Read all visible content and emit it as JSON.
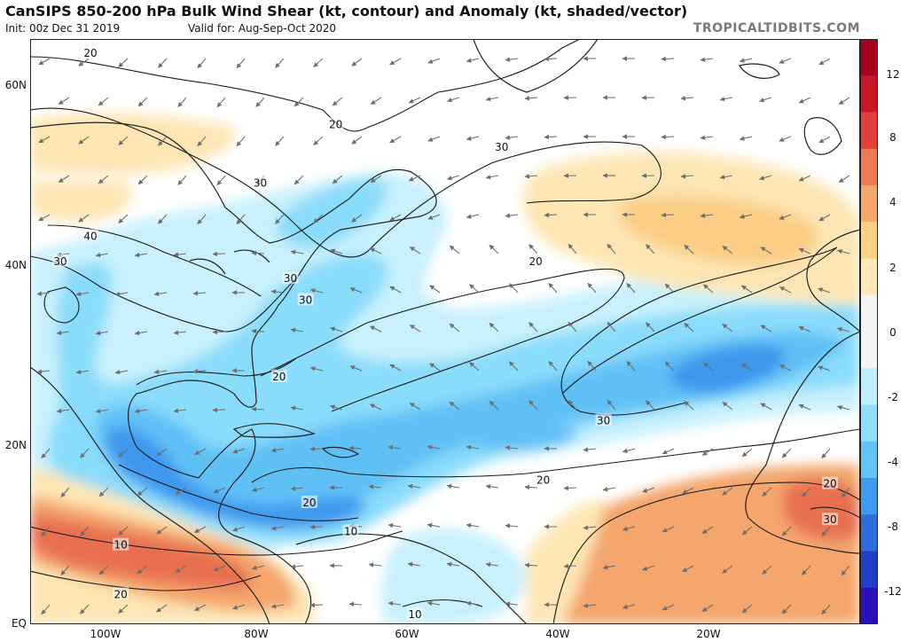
{
  "header": {
    "title": "CanSIPS 850-200 hPa Bulk Wind Shear (kt, contour) and Anomaly (kt, shaded/vector)",
    "init": "Init: 00z Dec 31 2019",
    "valid": "Valid for: Aug-Sep-Oct 2020",
    "credit": "TROPICALTIDBITS.COM"
  },
  "map": {
    "lon_range": [
      -110,
      0
    ],
    "lat_range": [
      0,
      65
    ],
    "lat_labels": [
      {
        "lat": 60,
        "label": "60N"
      },
      {
        "lat": 40,
        "label": "40N"
      },
      {
        "lat": 20,
        "label": "20N"
      },
      {
        "lat": 0,
        "label": "EQ"
      }
    ],
    "lon_labels": [
      {
        "lon": -100,
        "label": "100W"
      },
      {
        "lon": -80,
        "label": "80W"
      },
      {
        "lon": -60,
        "label": "60W"
      },
      {
        "lon": -40,
        "label": "40W"
      },
      {
        "lon": -20,
        "label": "20W"
      }
    ],
    "contour_labels": [
      {
        "text": "20",
        "lon": -102,
        "lat": 63.4
      },
      {
        "text": "20",
        "lon": -69.5,
        "lat": 55.5
      },
      {
        "text": "30",
        "lon": -47.5,
        "lat": 53
      },
      {
        "text": "30",
        "lon": -79.5,
        "lat": 49
      },
      {
        "text": "40",
        "lon": -102,
        "lat": 43.1
      },
      {
        "text": "30",
        "lon": -106,
        "lat": 40.3
      },
      {
        "text": "20",
        "lon": -43,
        "lat": 40.3
      },
      {
        "text": "30",
        "lon": -75.5,
        "lat": 38.4
      },
      {
        "text": "30",
        "lon": -73.5,
        "lat": 36
      },
      {
        "text": "20",
        "lon": -77,
        "lat": 27.5
      },
      {
        "text": "30",
        "lon": -34,
        "lat": 22.6
      },
      {
        "text": "20",
        "lon": -42,
        "lat": 16
      },
      {
        "text": "20",
        "lon": -73,
        "lat": 13.5
      },
      {
        "text": "10",
        "lon": -67.5,
        "lat": 10.3
      },
      {
        "text": "10",
        "lon": -98,
        "lat": 8.8
      },
      {
        "text": "20",
        "lon": -98,
        "lat": 3.3
      },
      {
        "text": "20",
        "lon": -4,
        "lat": 15.6
      },
      {
        "text": "30",
        "lon": -4,
        "lat": 11.6
      },
      {
        "text": "10",
        "lon": -59,
        "lat": 1.1
      }
    ]
  },
  "colorbar": {
    "colors": [
      "#f4f4f4",
      "#fde9b8",
      "#fcd186",
      "#f6a76c",
      "#ec7a55",
      "#e04038",
      "#c81826",
      "#a80020",
      "#bfeffd",
      "#8fdefb",
      "#5fc4f7",
      "#3c9cf0",
      "#2c6fdc",
      "#2040c8",
      "#2a10b8"
    ],
    "labels": [
      "12",
      "8",
      "4",
      "2",
      "0",
      "-2",
      "-4",
      "-8",
      "-12"
    ]
  }
}
